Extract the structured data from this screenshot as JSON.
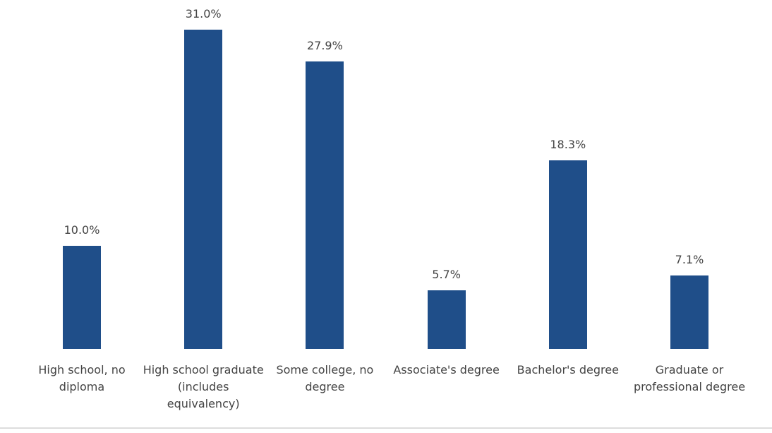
{
  "chart_data": {
    "type": "bar",
    "categories": [
      "High school, no diploma",
      "High school graduate (includes equivalency)",
      "Some college, no degree",
      "Associate's degree",
      "Bachelor's degree",
      "Graduate or professional degree"
    ],
    "values": [
      10.0,
      31.0,
      27.9,
      5.7,
      18.3,
      7.1
    ],
    "value_labels": [
      "10.0%",
      "31.0%",
      "27.9%",
      "5.7%",
      "18.3%",
      "7.1%"
    ],
    "color": "#1f4e89"
  }
}
